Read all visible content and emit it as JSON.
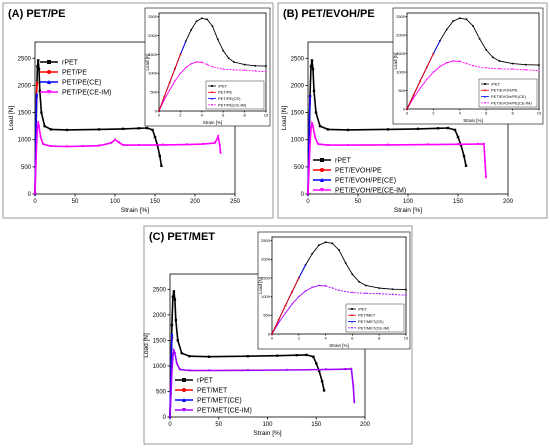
{
  "chart_data": [
    {
      "panel_label": "(A) PET/PE",
      "type": "line",
      "xlabel": "Strain [%]",
      "ylabel": "Load [N]",
      "xlim": [
        0,
        250
      ],
      "ylim": [
        0,
        2800
      ],
      "xticks": [
        0,
        50,
        100,
        150,
        200,
        250
      ],
      "yticks": [
        0,
        500,
        1000,
        1500,
        2000,
        2500
      ],
      "legend_position": "top-right",
      "series": [
        {
          "name": "rPET",
          "color": "#000000",
          "marker": "square",
          "x": [
            0,
            1,
            2,
            3,
            4,
            5,
            6,
            8,
            12,
            20,
            40,
            80,
            110,
            130,
            140,
            147,
            150,
            153,
            156,
            158
          ],
          "y": [
            0,
            800,
            1800,
            2350,
            2460,
            2300,
            1900,
            1500,
            1250,
            1190,
            1180,
            1190,
            1200,
            1210,
            1215,
            1180,
            1050,
            900,
            700,
            520
          ]
        },
        {
          "name": "PET/PE",
          "color": "#ff0000",
          "marker": "circle",
          "x": [
            0,
            0.6,
            1.2,
            1.8,
            2.3,
            2.8
          ],
          "y": [
            0,
            600,
            1200,
            1700,
            2000,
            2050
          ]
        },
        {
          "name": "PET/PE(CE)",
          "color": "#0000ff",
          "marker": "triangle",
          "x": [
            0,
            0.5,
            1.0,
            1.5,
            2.0,
            2.4
          ],
          "y": [
            0,
            500,
            1000,
            1450,
            1800,
            1850
          ]
        },
        {
          "name": "PET/PE(CE-IM)",
          "color": "#ff00ff",
          "marker": "triangle-down",
          "x": [
            0,
            1,
            2,
            3,
            4,
            5,
            7,
            10,
            20,
            40,
            60,
            80,
            95,
            100,
            105,
            110,
            130,
            160,
            190,
            210,
            225,
            229,
            231,
            232
          ],
          "y": [
            0,
            450,
            900,
            1200,
            1320,
            1250,
            1050,
            920,
            880,
            875,
            880,
            890,
            940,
            1000,
            950,
            900,
            900,
            905,
            910,
            920,
            940,
            1060,
            900,
            750
          ]
        }
      ],
      "inset": {
        "xlabel": "Strain [%]",
        "ylabel": "Load [N]",
        "xlim": [
          0,
          10
        ],
        "ylim": [
          0,
          2600
        ],
        "xticks": [
          0,
          2,
          4,
          6,
          8,
          10
        ],
        "yticks": [
          0,
          500,
          1000,
          1500,
          2000,
          2500
        ],
        "legend": [
          "rPET",
          "PET/PE",
          "PET/PE(CE)",
          "PET/PE(CE-IM)"
        ]
      }
    },
    {
      "panel_label": "(B) PET/EVOH/PE",
      "type": "line",
      "xlabel": "Strain [%]",
      "ylabel": "Load [N]",
      "xlim": [
        0,
        200
      ],
      "ylim": [
        0,
        2800
      ],
      "xticks": [
        0,
        50,
        100,
        150,
        200
      ],
      "yticks": [
        0,
        500,
        1000,
        1500,
        2000,
        2500
      ],
      "legend_position": "top-right",
      "series": [
        {
          "name": "rPET",
          "color": "#000000",
          "marker": "square",
          "x": [
            0,
            1,
            2,
            3,
            4,
            5,
            6,
            8,
            12,
            20,
            40,
            80,
            110,
            130,
            140,
            147,
            150,
            153,
            156,
            158
          ],
          "y": [
            0,
            800,
            1800,
            2350,
            2460,
            2300,
            1900,
            1500,
            1250,
            1190,
            1180,
            1190,
            1200,
            1210,
            1215,
            1180,
            1050,
            900,
            700,
            520
          ]
        },
        {
          "name": "PET/EVOH/PE",
          "color": "#ff0000",
          "marker": "circle",
          "x": [
            0,
            0.6,
            1.2,
            1.8,
            2.3
          ],
          "y": [
            0,
            600,
            1200,
            1650,
            1800
          ]
        },
        {
          "name": "PET/EVOH/PE(CE)",
          "color": "#0000ff",
          "marker": "triangle",
          "x": [
            0,
            0.5,
            1.0,
            1.5,
            2.0,
            2.3
          ],
          "y": [
            0,
            500,
            1000,
            1400,
            1750,
            1820
          ]
        },
        {
          "name": "PET/EVOH/PE(CE-IM)",
          "color": "#ff00ff",
          "marker": "triangle-down",
          "x": [
            0,
            1,
            2,
            3,
            4,
            5,
            7,
            10,
            20,
            40,
            80,
            120,
            150,
            170,
            176,
            177,
            178
          ],
          "y": [
            0,
            450,
            900,
            1200,
            1300,
            1250,
            1050,
            920,
            900,
            900,
            905,
            910,
            915,
            920,
            920,
            600,
            300
          ]
        }
      ],
      "inset": {
        "xlabel": "Strain [%]",
        "ylabel": "Load [N]",
        "xlim": [
          0,
          10
        ],
        "ylim": [
          0,
          2600
        ],
        "xticks": [
          0,
          2,
          4,
          6,
          8,
          10
        ],
        "yticks": [
          0,
          500,
          1000,
          1500,
          2000,
          2500
        ],
        "legend": [
          "rPET",
          "PET/EVOH/PE",
          "PET/EVOH/PE(CE)",
          "PET/EVOH/PE(CE-IM)"
        ]
      }
    },
    {
      "panel_label": "(C) PET/MET",
      "type": "line",
      "xlabel": "Strain [%]",
      "ylabel": "Load [N]",
      "xlim": [
        0,
        200
      ],
      "ylim": [
        0,
        2800
      ],
      "xticks": [
        0,
        50,
        100,
        150,
        200
      ],
      "yticks": [
        0,
        500,
        1000,
        1500,
        2000,
        2500
      ],
      "legend_position": "bottom-left",
      "series": [
        {
          "name": "rPET",
          "color": "#000000",
          "marker": "square",
          "x": [
            0,
            1,
            2,
            3,
            4,
            5,
            6,
            8,
            12,
            20,
            40,
            80,
            110,
            130,
            140,
            147,
            150,
            153,
            156,
            158
          ],
          "y": [
            0,
            800,
            1800,
            2350,
            2460,
            2300,
            1900,
            1500,
            1250,
            1190,
            1180,
            1190,
            1200,
            1210,
            1215,
            1180,
            1050,
            900,
            700,
            520
          ]
        },
        {
          "name": "PET/MET",
          "color": "#ff0000",
          "marker": "circle",
          "x": [
            0,
            0.6,
            1.2,
            1.8,
            2.2
          ],
          "y": [
            0,
            600,
            1150,
            1500,
            1550
          ]
        },
        {
          "name": "PET/MET(CE)",
          "color": "#0000ff",
          "marker": "triangle",
          "x": [
            0,
            0.5,
            1.0,
            1.5,
            2.0,
            2.2
          ],
          "y": [
            0,
            500,
            950,
            1350,
            1600,
            1620
          ]
        },
        {
          "name": "PET/MET(CE-IM)",
          "color": "#a000ff",
          "marker": "triangle-down",
          "x": [
            0,
            1,
            2,
            3,
            4,
            5,
            7,
            10,
            20,
            40,
            80,
            120,
            160,
            180,
            186,
            188,
            189
          ],
          "y": [
            0,
            450,
            900,
            1200,
            1300,
            1250,
            1050,
            930,
            910,
            910,
            915,
            920,
            930,
            935,
            940,
            600,
            280
          ]
        }
      ],
      "inset": {
        "xlabel": "Strain [%]",
        "ylabel": "Load [N]",
        "xlim": [
          0,
          10
        ],
        "ylim": [
          0,
          2600
        ],
        "xticks": [
          0,
          2,
          4,
          6,
          8,
          10
        ],
        "yticks": [
          0,
          500,
          1000,
          1500,
          2000,
          2500
        ],
        "legend": [
          "rPET",
          "PET/MET",
          "PET/MET(CE)",
          "PET/MET(CE-IM)"
        ]
      }
    }
  ],
  "inset_curves": {
    "rPET": {
      "x": [
        0,
        0.5,
        1,
        1.5,
        2,
        2.5,
        3,
        3.5,
        4,
        4.5,
        5,
        5.5,
        6,
        6.5,
        7,
        8,
        9,
        10
      ],
      "y": [
        0,
        380,
        760,
        1130,
        1500,
        1850,
        2150,
        2380,
        2460,
        2430,
        2250,
        1900,
        1600,
        1400,
        1300,
        1230,
        1200,
        1190
      ]
    },
    "blend": {
      "x": [
        0,
        0.5,
        1,
        1.5,
        2,
        2.5,
        3,
        3.5,
        4,
        4.5,
        5,
        6,
        7,
        8,
        9,
        10
      ],
      "y": [
        0,
        300,
        560,
        800,
        1000,
        1150,
        1250,
        1300,
        1290,
        1230,
        1170,
        1110,
        1090,
        1080,
        1060,
        1040
      ]
    },
    "stiff": {
      "x": [
        0,
        0.5,
        1,
        1.5,
        2,
        2.5
      ],
      "y": [
        0,
        380,
        760,
        1130,
        1500,
        1850
      ]
    }
  }
}
